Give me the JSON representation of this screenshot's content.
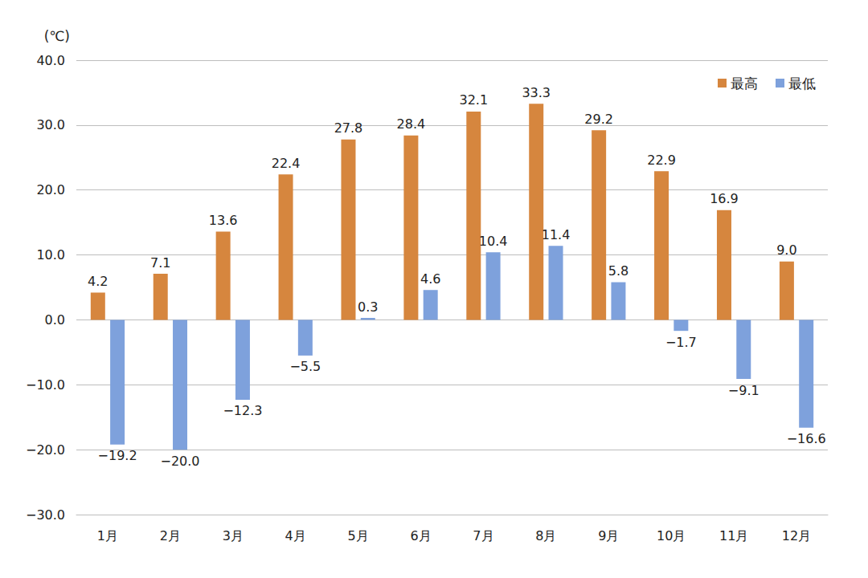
{
  "chart_data": {
    "type": "bar",
    "ylabel": "(℃)",
    "categories": [
      "1月",
      "2月",
      "3月",
      "4月",
      "5月",
      "6月",
      "7月",
      "8月",
      "9月",
      "10月",
      "11月",
      "12月"
    ],
    "series": [
      {
        "name": "最高",
        "color": "#d6863e",
        "values": [
          4.2,
          7.1,
          13.6,
          22.4,
          27.8,
          28.4,
          32.1,
          33.3,
          29.2,
          22.9,
          16.9,
          9.0
        ],
        "value_labels": [
          "4.2",
          "7.1",
          "13.6",
          "22.4",
          "27.8",
          "28.4",
          "32.1",
          "33.3",
          "29.2",
          "22.9",
          "16.9",
          "9.0"
        ]
      },
      {
        "name": "最低",
        "color": "#7ea1dc",
        "values": [
          -19.2,
          -20.0,
          -12.3,
          -5.5,
          0.3,
          4.6,
          10.4,
          11.4,
          5.8,
          -1.7,
          -9.1,
          -16.6
        ],
        "value_labels": [
          "−19.2",
          "−20.0",
          "−12.3",
          "−5.5",
          "0.3",
          "4.6",
          "10.4",
          "11.4",
          "5.8",
          "−1.7",
          "−9.1",
          "−16.6"
        ]
      }
    ],
    "ylim": [
      -30,
      40
    ],
    "yticks": [
      {
        "value": -30,
        "label": "−30.0"
      },
      {
        "value": -20,
        "label": "−20.0"
      },
      {
        "value": -10,
        "label": "−10.0"
      },
      {
        "value": 0,
        "label": "0.0"
      },
      {
        "value": 10,
        "label": "10.0"
      },
      {
        "value": 20,
        "label": "20.0"
      },
      {
        "value": 30,
        "label": "30.0"
      },
      {
        "value": 40,
        "label": "40.0"
      }
    ],
    "grid": true,
    "legend": "upper right",
    "data_labels": true
  }
}
